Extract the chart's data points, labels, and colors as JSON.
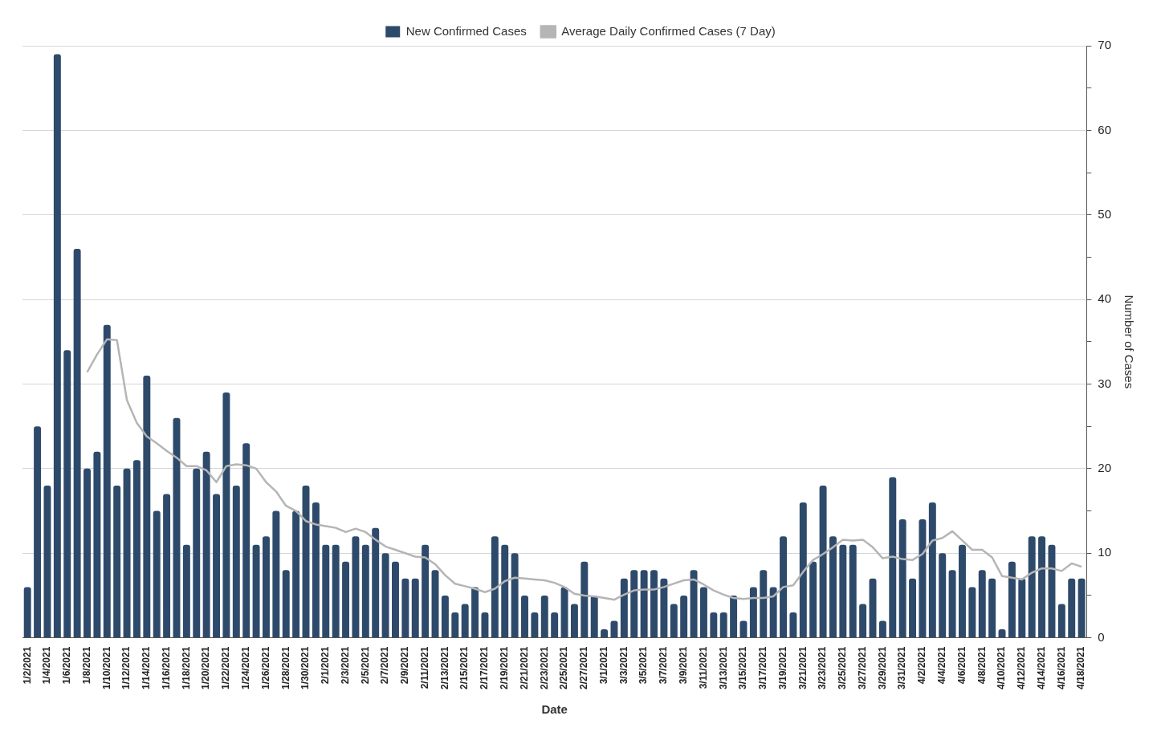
{
  "chart_data": {
    "type": "bar",
    "xlabel": "Date",
    "y2label": "Number of Cases",
    "categories": [
      "1/2/2021",
      null,
      "1/4/2021",
      null,
      "1/6/2021",
      null,
      "1/8/2021",
      null,
      "1/10/2021",
      null,
      "1/12/2021",
      null,
      "1/14/2021",
      null,
      "1/16/2021",
      null,
      "1/18/2021",
      null,
      "1/20/2021",
      null,
      "1/22/2021",
      null,
      "1/24/2021",
      null,
      "1/26/2021",
      null,
      "1/28/2021",
      null,
      "1/30/2021",
      null,
      "2/1/2021",
      null,
      "2/3/2021",
      null,
      "2/5/2021",
      null,
      "2/7/2021",
      null,
      "2/9/2021",
      null,
      "2/11/2021",
      null,
      "2/13/2021",
      null,
      "2/15/2021",
      null,
      "2/17/2021",
      null,
      "2/19/2021",
      null,
      "2/21/2021",
      null,
      "2/23/2021",
      null,
      "2/25/2021",
      null,
      "2/27/2021",
      null,
      "3/1/2021",
      null,
      "3/3/2021",
      null,
      "3/5/2021",
      null,
      "3/7/2021",
      null,
      "3/9/2021",
      null,
      "3/11/2021",
      null,
      "3/13/2021",
      null,
      "3/15/2021",
      null,
      "3/17/2021",
      null,
      "3/19/2021",
      null,
      "3/21/2021",
      null,
      "3/23/2021",
      null,
      "3/25/2021",
      null,
      "3/27/2021",
      null,
      "3/29/2021",
      null,
      "3/31/2021",
      null,
      "4/2/2021",
      null,
      "4/4/2021",
      null,
      "4/6/2021",
      null,
      "4/8/2021",
      null,
      "4/10/2021",
      null,
      "4/12/2021",
      null,
      "4/14/2021",
      null,
      "4/16/2021",
      null,
      "4/18/2021"
    ],
    "series": [
      {
        "name": "New Confirmed Cases",
        "axis": "y2",
        "color": "#2e4a6b",
        "values": [
          6,
          25,
          18,
          69,
          34,
          46,
          20,
          22,
          37,
          18,
          20,
          21,
          31,
          15,
          17,
          26,
          11,
          20,
          22,
          17,
          29,
          18,
          23,
          11,
          12,
          15,
          8,
          15,
          18,
          16,
          11,
          11,
          9,
          12,
          11,
          13,
          10,
          9,
          7,
          7,
          11,
          8,
          5,
          3,
          4,
          6,
          3,
          12,
          11,
          10,
          5,
          3,
          5,
          3,
          6,
          4,
          9,
          5,
          1,
          2,
          7,
          8,
          8,
          8,
          7,
          4,
          5,
          8,
          6,
          3,
          3,
          5,
          2,
          6,
          8,
          6,
          12,
          3,
          16,
          9,
          18,
          12,
          11,
          11,
          4,
          7,
          2,
          19,
          14,
          7,
          14,
          16,
          10,
          8,
          11,
          6,
          8,
          7,
          1,
          9,
          7,
          12,
          12,
          11,
          4,
          7,
          7
        ]
      },
      {
        "name": "Average Daily Confirmed Cases (7 Day)",
        "type": "line",
        "axis": "y2",
        "color": "#b5b5b5",
        "values": [
          null,
          null,
          null,
          null,
          null,
          null,
          31.4,
          33.5,
          35.3,
          35.2,
          28.1,
          25.4,
          23.8,
          23,
          22.1,
          21.3,
          20.3,
          20.3,
          19.8,
          18.4,
          20.3,
          20.5,
          20.4,
          20,
          18.4,
          17.3,
          15.6,
          15,
          13.8,
          13.4,
          13.2,
          13,
          12.5,
          12.9,
          12.5,
          11.6,
          10.8,
          10.4,
          10,
          9.6,
          9.5,
          8.7,
          7.4,
          6.4,
          6.1,
          5.8,
          5.4,
          5.8,
          6.7,
          7.1,
          7,
          6.9,
          6.8,
          6.5,
          6,
          5.2,
          5,
          4.9,
          4.7,
          4.5,
          5.1,
          5.6,
          5.7,
          5.7,
          6,
          6.4,
          6.8,
          6.9,
          6.3,
          5.6,
          5.1,
          4.7,
          4.6,
          4.7,
          4.7,
          4.9,
          6,
          6.2,
          7.8,
          9.2,
          9.9,
          10.7,
          11.6,
          11.5,
          11.6,
          10.7,
          9.4,
          9.6,
          9.3,
          9.2,
          9.9,
          11.5,
          11.8,
          12.6,
          11.5,
          10.4,
          10.4,
          9.5,
          7.3,
          7.1,
          6.9,
          7.7,
          8.2,
          8.2,
          7.9,
          8.8,
          8.4
        ]
      }
    ],
    "y2lim": [
      0,
      70
    ],
    "y2ticks": [
      0,
      {
        "value": 5,
        "label": null
      },
      10,
      {
        "value": 15,
        "label": null
      },
      20,
      {
        "value": 25,
        "label": null
      },
      30,
      {
        "value": 35,
        "label": null
      },
      40,
      {
        "value": 45,
        "label": null
      },
      50,
      {
        "value": 55,
        "label": null
      },
      60,
      {
        "value": 65,
        "label": null
      },
      70
    ],
    "grid": "y",
    "legend": "top",
    "marker": "none"
  }
}
